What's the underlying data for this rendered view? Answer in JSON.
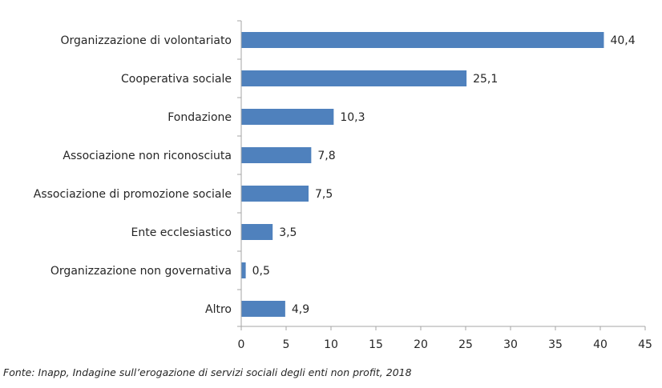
{
  "chart_data": {
    "type": "bar",
    "orientation": "horizontal",
    "categories": [
      "Organizzazione di volontariato",
      "Cooperativa sociale",
      "Fondazione",
      "Associazione non riconosciuta",
      "Associazione di promozione sociale",
      "Ente ecclesiastico",
      "Organizzazione non governativa",
      "Altro"
    ],
    "values": [
      40.4,
      25.1,
      10.3,
      7.8,
      7.5,
      3.5,
      0.5,
      4.9
    ],
    "value_labels": [
      "40,4",
      "25,1",
      "10,3",
      "7,8",
      "7,5",
      "3,5",
      "0,5",
      "4,9"
    ],
    "xlim": [
      0,
      45
    ],
    "xticks": [
      0,
      5,
      10,
      15,
      20,
      25,
      30,
      35,
      40,
      45
    ],
    "bar_color": "#4f81bd",
    "grid": false,
    "legend": "none"
  },
  "source": "Fonte: Inapp, Indagine sull’erogazione di servizi sociali degli enti non profit, 2018"
}
